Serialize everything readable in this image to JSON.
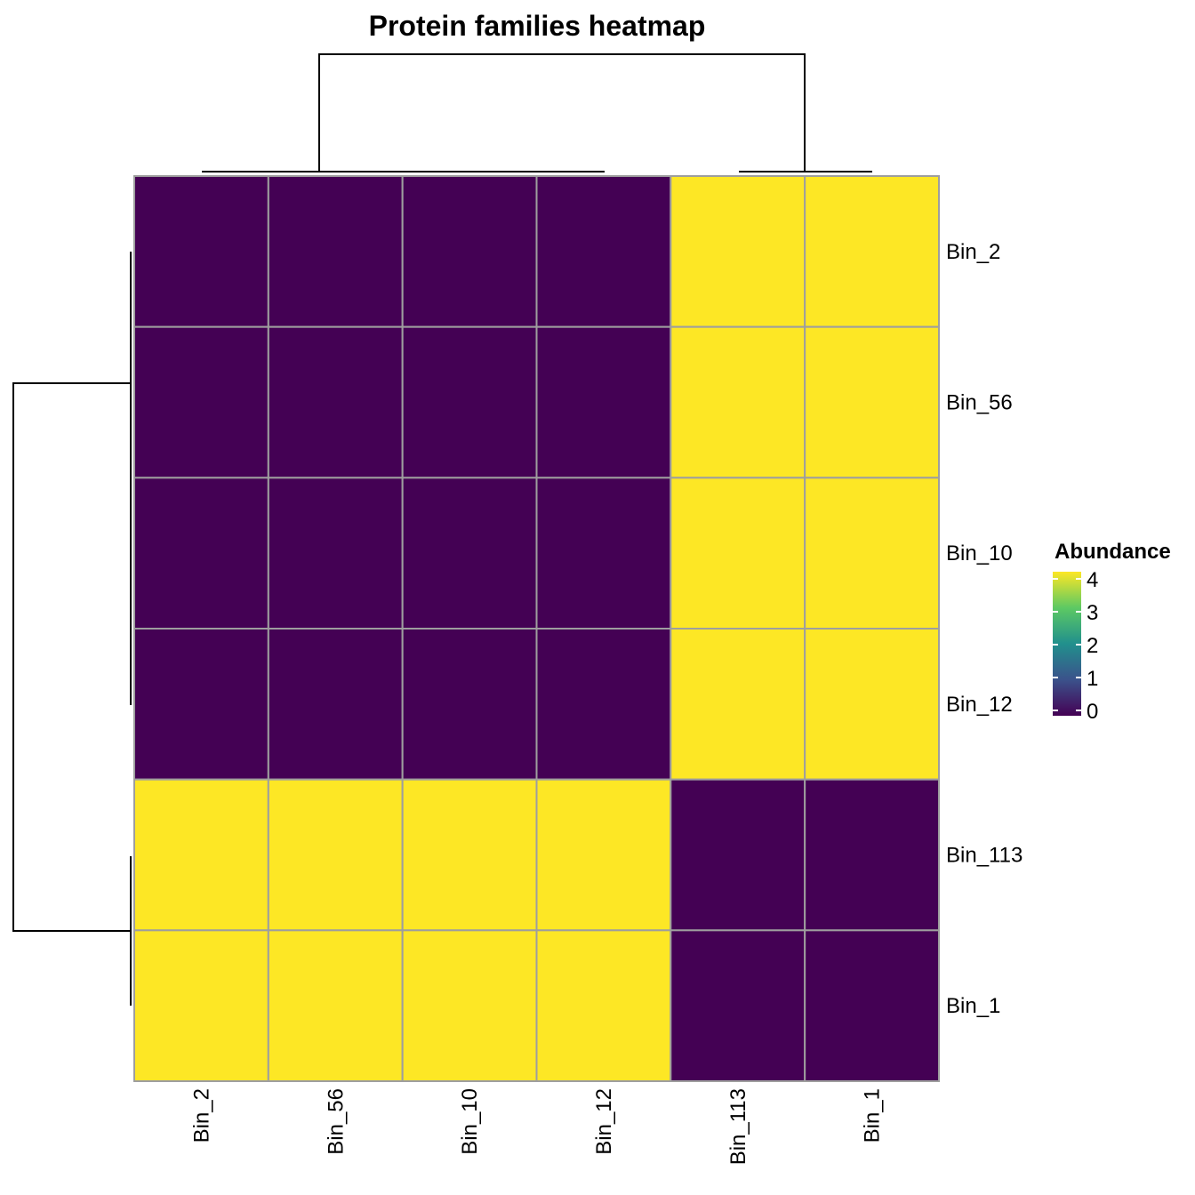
{
  "chart_data": {
    "type": "heatmap",
    "title": "Protein families heatmap",
    "rows": [
      "Bin_2",
      "Bin_56",
      "Bin_10",
      "Bin_12",
      "Bin_113",
      "Bin_1"
    ],
    "columns": [
      "Bin_2",
      "Bin_56",
      "Bin_10",
      "Bin_12",
      "Bin_113",
      "Bin_1"
    ],
    "values": [
      [
        0,
        0,
        0,
        0,
        4,
        4
      ],
      [
        0,
        0,
        0,
        0,
        4,
        4
      ],
      [
        0,
        0,
        0,
        0,
        4,
        4
      ],
      [
        0,
        0,
        0,
        0,
        4,
        4
      ],
      [
        4,
        4,
        4,
        4,
        0,
        0
      ],
      [
        4,
        4,
        4,
        4,
        0,
        0
      ]
    ],
    "color_scale": {
      "name": "viridis",
      "min": 0,
      "max": 4,
      "stops": [
        "#440154",
        "#3b528b",
        "#21908d",
        "#5dc963",
        "#fde725"
      ]
    },
    "legend": {
      "title": "Abundance",
      "ticks": [
        0,
        1,
        2,
        3,
        4
      ],
      "position": "right"
    },
    "row_dendrogram": true,
    "column_dendrogram": true
  }
}
